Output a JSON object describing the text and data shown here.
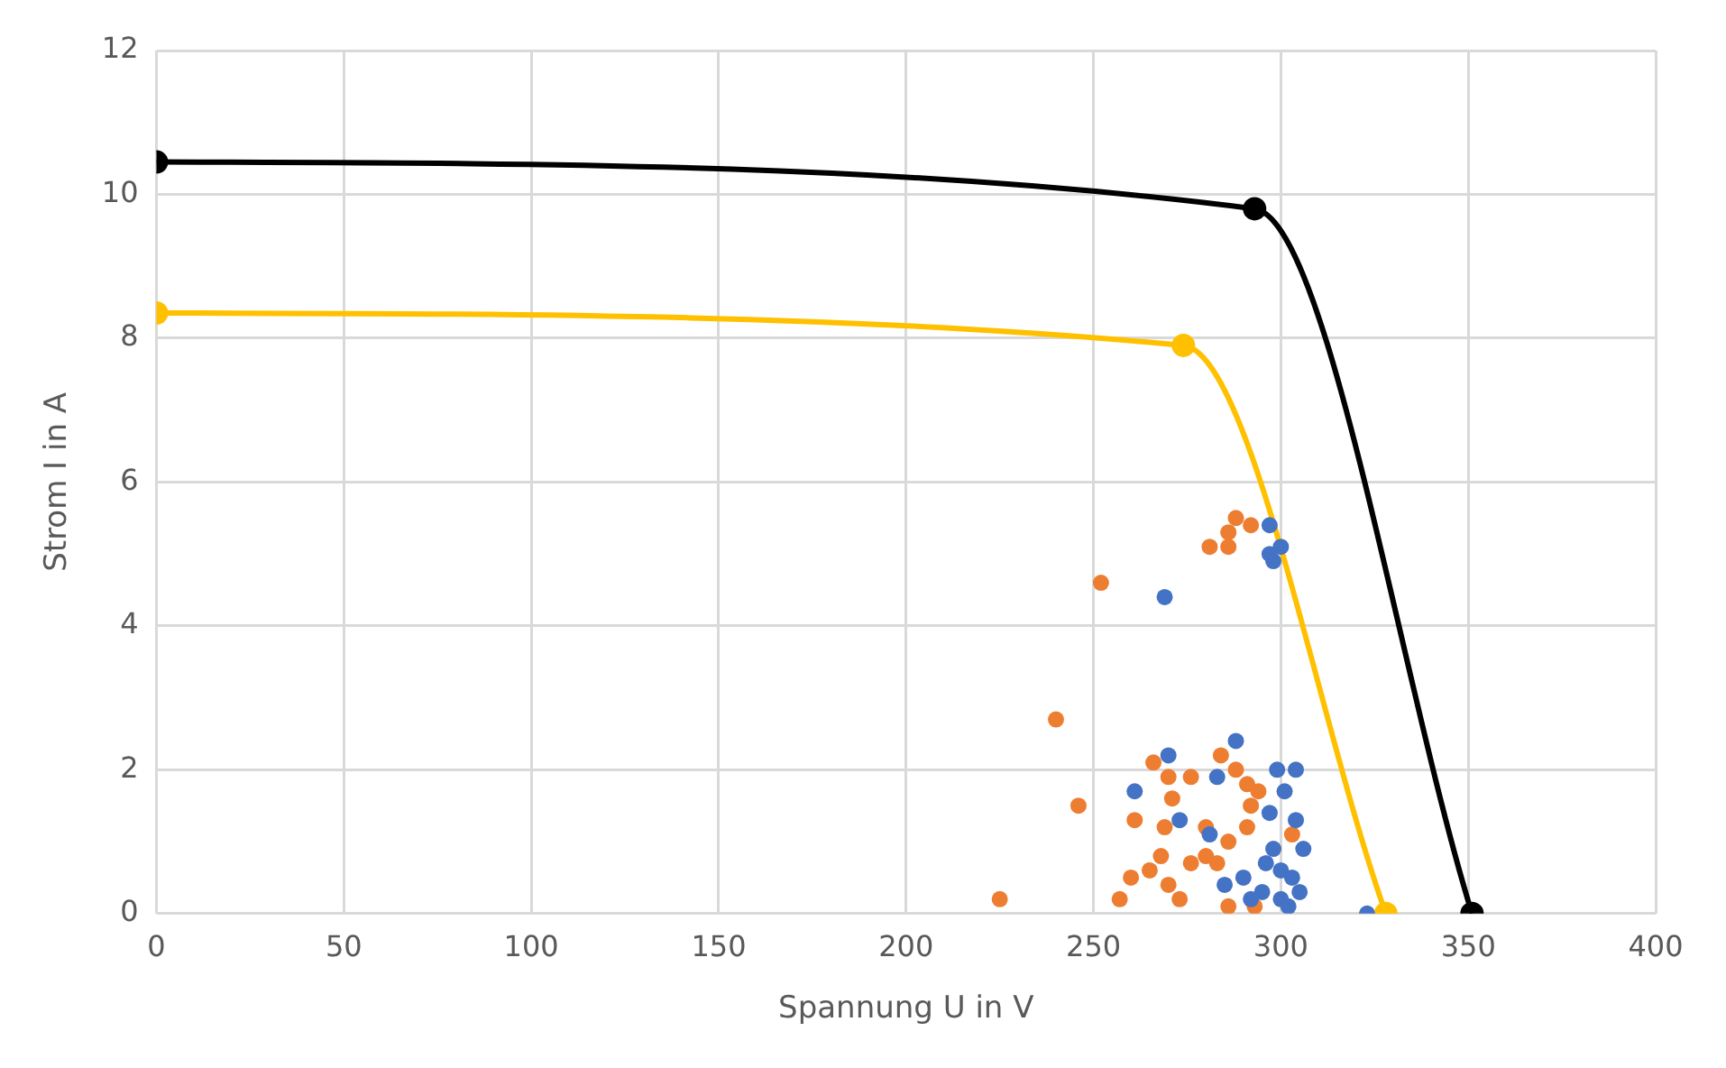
{
  "chart_data": {
    "type": "scatter",
    "xlabel": "Spannung U in V",
    "ylabel": "Strom I in A",
    "xlim": [
      0,
      400
    ],
    "ylim": [
      0,
      12
    ],
    "xticks": [
      0,
      50,
      100,
      150,
      200,
      250,
      300,
      350,
      400
    ],
    "yticks": [
      0,
      2,
      4,
      6,
      8,
      10,
      12
    ],
    "grid": true,
    "marker": "circle",
    "series": [
      {
        "type": "scatter",
        "color": "#4472c4",
        "x": [
          269,
          297,
          300,
          298,
          297,
          323,
          261,
          270,
          288,
          299,
          304,
          301,
          297,
          304,
          273,
          281,
          283,
          290,
          295,
          300,
          305,
          298,
          302,
          292,
          285,
          306,
          300,
          296,
          303
        ],
        "values": [
          4.4,
          5.4,
          5.1,
          4.9,
          5.0,
          0,
          1.7,
          2.2,
          2.4,
          2.0,
          2.0,
          1.7,
          1.4,
          1.3,
          1.3,
          1.1,
          1.9,
          0.5,
          0.3,
          0.6,
          0.3,
          0.9,
          0.1,
          0.2,
          0.4,
          0.9,
          0.2,
          0.7,
          0.5
        ]
      },
      {
        "type": "scatter",
        "color": "#ed7d31",
        "x": [
          252,
          240,
          246,
          225,
          257,
          281,
          288,
          292,
          286,
          286,
          261,
          266,
          270,
          276,
          284,
          288,
          291,
          294,
          292,
          271,
          269,
          303,
          260,
          265,
          270,
          276,
          280,
          286,
          291,
          273,
          286,
          293,
          283,
          268,
          280
        ],
        "values": [
          4.6,
          2.7,
          1.5,
          0.2,
          0.2,
          5.1,
          5.5,
          5.4,
          5.3,
          5.1,
          1.3,
          2.1,
          1.9,
          1.9,
          2.2,
          2.0,
          1.8,
          1.7,
          1.5,
          1.6,
          1.2,
          1.1,
          0.5,
          0.6,
          0.4,
          0.7,
          1.2,
          1.0,
          1.2,
          0.2,
          0.1,
          0.1,
          0.7,
          0.8,
          0.8
        ]
      },
      {
        "type": "line",
        "color": "#000000",
        "x": [
          0,
          293,
          351
        ],
        "values": [
          10.45,
          9.8,
          0
        ]
      },
      {
        "type": "line",
        "color": "#ffc000",
        "x": [
          0,
          274,
          328
        ],
        "values": [
          8.35,
          7.9,
          0
        ]
      }
    ]
  }
}
